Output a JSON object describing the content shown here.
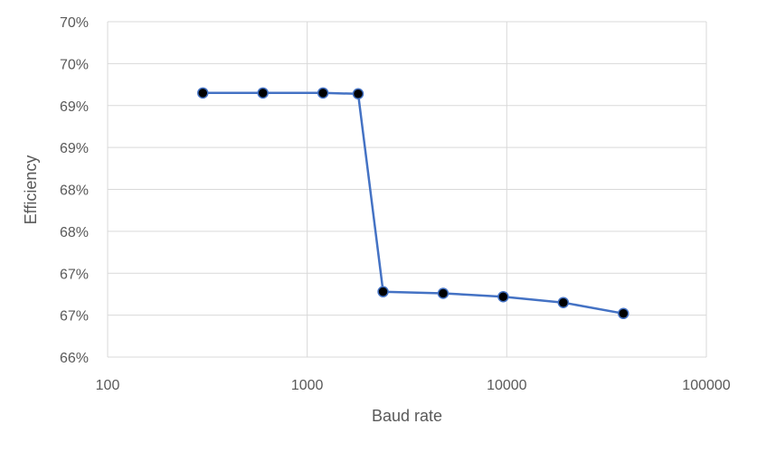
{
  "chart_data": {
    "type": "line",
    "title": "",
    "xlabel": "Baud rate",
    "ylabel": "Efficiency",
    "x_scale": "log",
    "xlim": [
      100,
      100000
    ],
    "x_ticks": [
      {
        "value": 100,
        "label": "100"
      },
      {
        "value": 1000,
        "label": "1000"
      },
      {
        "value": 10000,
        "label": "10000"
      },
      {
        "value": 100000,
        "label": "100000"
      }
    ],
    "ylim": [
      0.66,
      0.7
    ],
    "y_ticks": [
      {
        "value": 0.66,
        "label": "66%"
      },
      {
        "value": 0.665,
        "label": "67%"
      },
      {
        "value": 0.67,
        "label": "67%"
      },
      {
        "value": 0.675,
        "label": "68%"
      },
      {
        "value": 0.68,
        "label": "68%"
      },
      {
        "value": 0.685,
        "label": "69%"
      },
      {
        "value": 0.69,
        "label": "69%"
      },
      {
        "value": 0.695,
        "label": "70%"
      }
    ],
    "grid": true,
    "legend": "none",
    "series": [
      {
        "color": "#4472C4",
        "marker_color": "#000000",
        "x": [
          300,
          600,
          1200,
          1800,
          2400,
          4800,
          9600,
          19200,
          38400
        ],
        "y": [
          0.6915,
          0.6915,
          0.6915,
          0.6914,
          0.6678,
          0.6676,
          0.6672,
          0.6665,
          0.6652
        ]
      }
    ]
  }
}
